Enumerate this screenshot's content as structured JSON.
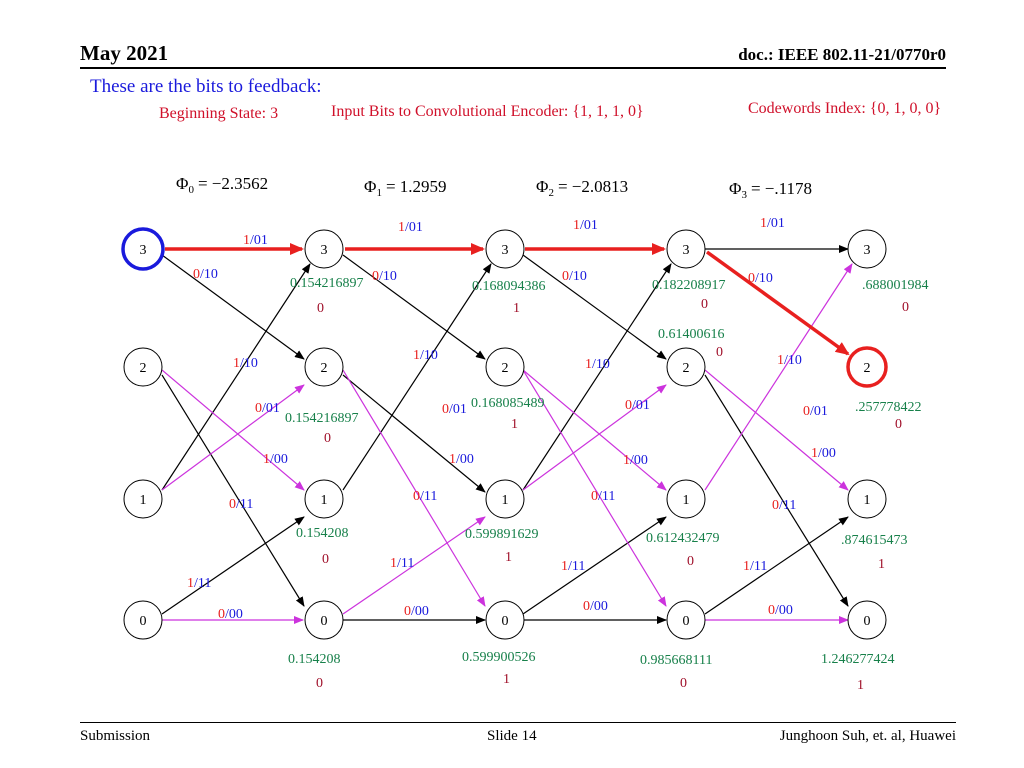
{
  "header": {
    "date": "May 2021",
    "doc": "doc.: IEEE 802.11-21/0770r0"
  },
  "slide_title": "These are the bits to feedback:",
  "beginning_state": "Beginning State: 3",
  "input_bits": "Input Bits to Convolutional Encoder: {1, 1, 1, 0}",
  "codewords_index": "Codewords Index: {0, 1, 0, 0}",
  "phi": [
    {
      "sym": "Φ",
      "sub": "0",
      "val": "= −2.3562"
    },
    {
      "sym": "Φ",
      "sub": "1",
      "val": "= 1.2959"
    },
    {
      "sym": "Φ",
      "sub": "2",
      "val": "= −2.0813"
    },
    {
      "sym": "Φ",
      "sub": "3",
      "val": "= −.1178"
    }
  ],
  "nodes": [
    "3",
    "2",
    "1",
    "0"
  ],
  "branch_labels": {
    "b1_01": {
      "bit": "1",
      "code": "/01"
    },
    "b0_10": {
      "bit": "0",
      "code": "/10"
    },
    "b1_10": {
      "bit": "1",
      "code": "/10"
    },
    "b0_01": {
      "bit": "0",
      "code": "/01"
    },
    "b1_00": {
      "bit": "1",
      "code": "/00"
    },
    "b0_11": {
      "bit": "0",
      "code": "/11"
    },
    "b1_11": {
      "bit": "1",
      "code": "/11"
    },
    "b0_00": {
      "bit": "0",
      "code": "/00"
    }
  },
  "metrics": {
    "c1": {
      "s3": "0.154216897",
      "s2": "0.154216897",
      "s1": "0.154208",
      "s0": "0.154208"
    },
    "c2": {
      "s3": "0.168094386",
      "s2": "0.168085489",
      "s1": "0.599891629",
      "s0": "0.599900526"
    },
    "c3": {
      "s3": "0.182208917",
      "s2": "0.61400616",
      "s1": "0.612432479",
      "s0": "0.985668111"
    },
    "c4": {
      "s3": ".688001984",
      "s2": ".257778422",
      "s1": ".874615473",
      "s0": "1.246277424"
    }
  },
  "decisions": {
    "c1": {
      "s3": "0",
      "s2": "0",
      "s1": "0",
      "s0": "0"
    },
    "c2": {
      "s3": "1",
      "s2": "1",
      "s1": "1",
      "s0": "1"
    },
    "c3": {
      "s3": "0",
      "s2": "0",
      "s1": "0",
      "s0": "0"
    },
    "c4": {
      "s3": "0",
      "s2": "0",
      "s1": "1",
      "s0": "1"
    }
  },
  "colors": {
    "red": "#e8201f",
    "magenta": "#cc33dd",
    "blue": "#1a1adc",
    "green": "#17804a",
    "darkred": "#a0102a"
  },
  "footer": {
    "left": "Submission",
    "center": "Slide 14",
    "right": "Junghoon Suh, et. al, Huawei"
  }
}
